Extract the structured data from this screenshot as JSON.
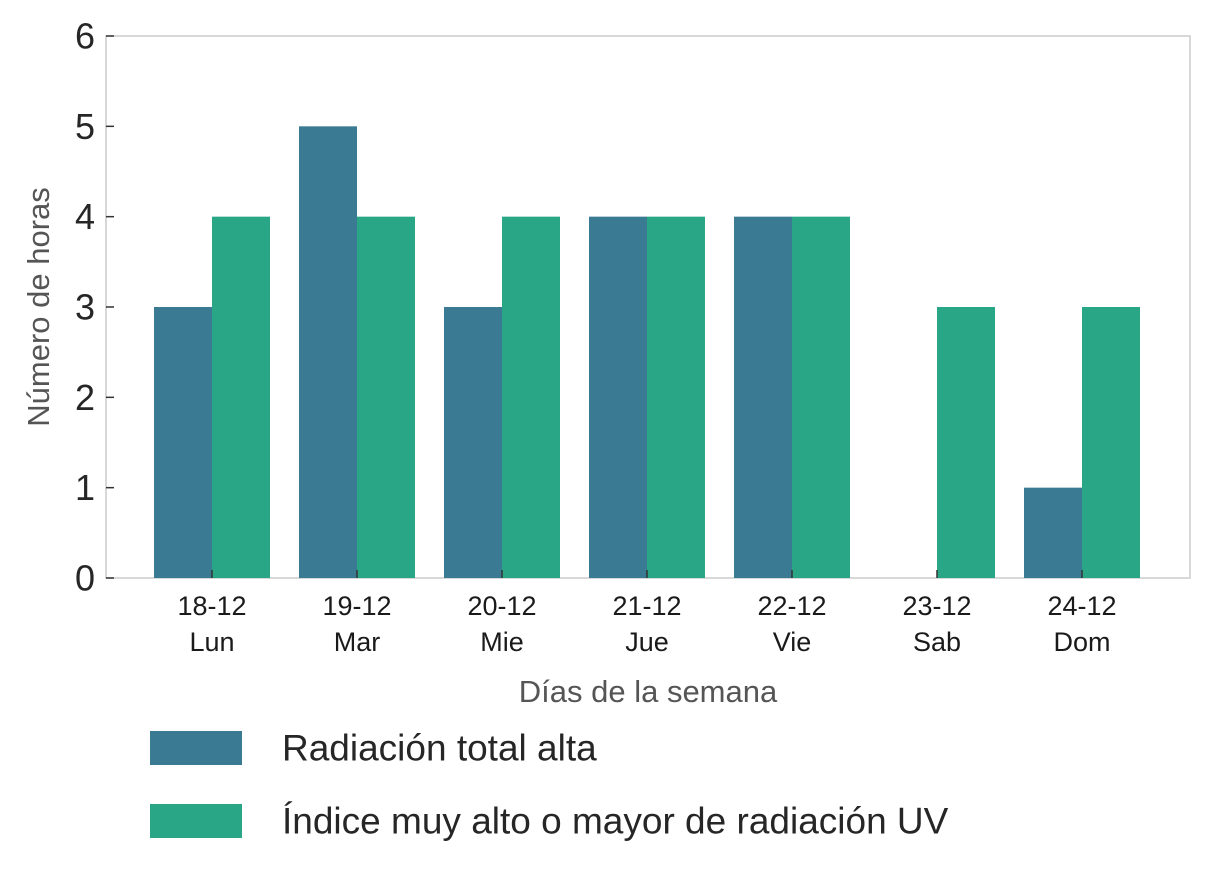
{
  "chart_data": {
    "type": "bar",
    "title": "",
    "xlabel": "Días de la semana",
    "ylabel": "Número de horas",
    "ylim": [
      0,
      6
    ],
    "yticks": [
      0,
      1,
      2,
      3,
      4,
      5,
      6
    ],
    "categories": [
      [
        "18-12",
        "Lun"
      ],
      [
        "19-12",
        "Mar"
      ],
      [
        "20-12",
        "Mie"
      ],
      [
        "21-12",
        "Jue"
      ],
      [
        "22-12",
        "Vie"
      ],
      [
        "23-12",
        "Sab"
      ],
      [
        "24-12",
        "Dom"
      ]
    ],
    "series": [
      {
        "name": "Radiación total alta",
        "color": "#3a7a93",
        "values": [
          3,
          5,
          3,
          4,
          4,
          0,
          1
        ]
      },
      {
        "name": "Índice muy alto o mayor de radiación UV",
        "color": "#29a685",
        "values": [
          4,
          4,
          4,
          4,
          4,
          3,
          3
        ]
      }
    ],
    "legend_position": "bottom",
    "grid": false
  }
}
